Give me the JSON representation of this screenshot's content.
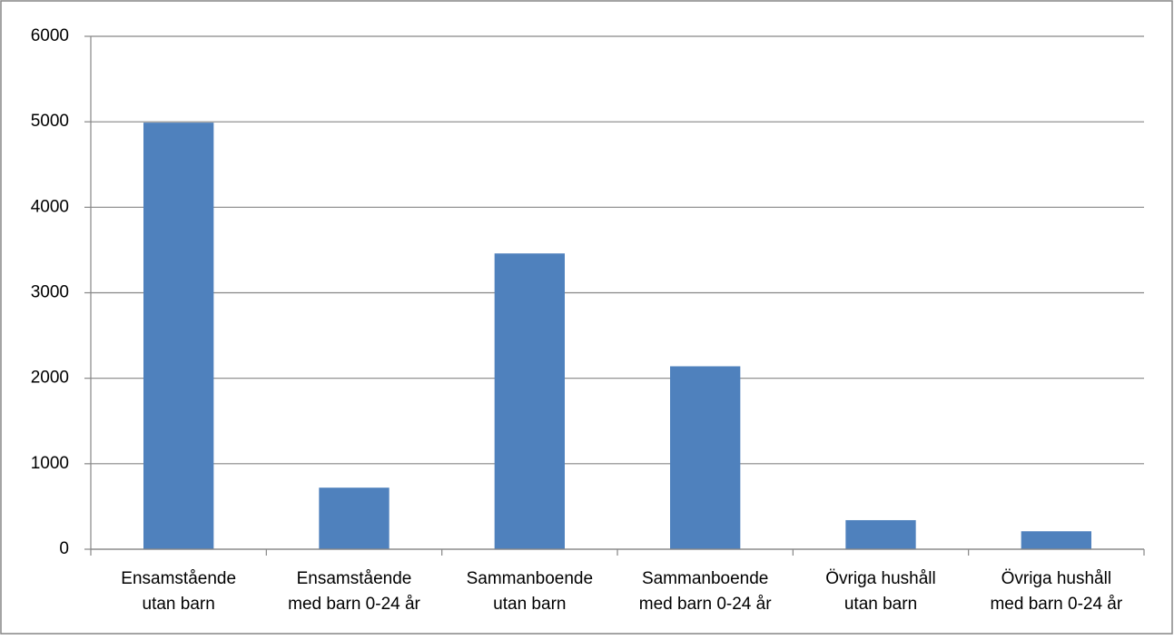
{
  "chart_data": {
    "type": "bar",
    "categories": [
      [
        "Ensamstående",
        "utan barn"
      ],
      [
        "Ensamstående",
        "med barn 0-24 år"
      ],
      [
        "Sammanboende",
        "utan barn"
      ],
      [
        "Sammanboende",
        "med barn 0-24 år"
      ],
      [
        "Övriga hushåll",
        "utan barn"
      ],
      [
        "Övriga hushåll",
        "med barn 0-24 år"
      ]
    ],
    "values": [
      4990,
      720,
      3460,
      2140,
      340,
      210
    ],
    "color": "#4f81bd",
    "ylim": [
      0,
      6000
    ],
    "yticks": [
      0,
      1000,
      2000,
      3000,
      4000,
      5000,
      6000
    ],
    "grid": true
  }
}
